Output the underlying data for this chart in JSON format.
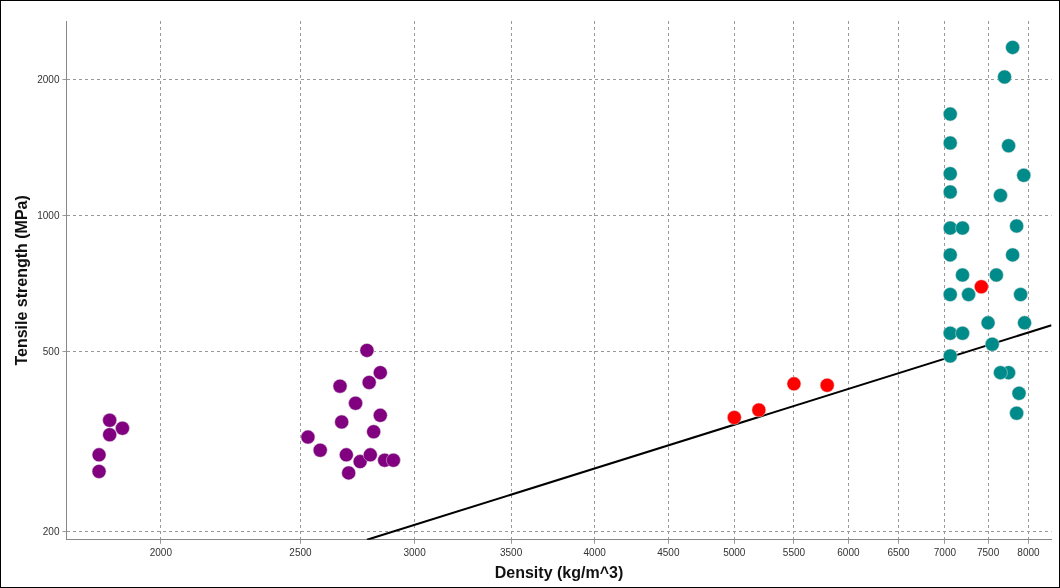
{
  "chart_data": {
    "type": "scatter",
    "xlabel": "Density (kg/m^3)",
    "ylabel": "Tensile strength (MPa)",
    "log": "xy",
    "grid": true,
    "legend": false,
    "marker": "circle",
    "xlim": [
      1720,
      8300
    ],
    "xticks": [
      2000,
      2500,
      3000,
      3500,
      4000,
      4500,
      5000,
      5500,
      6000,
      6500,
      7000,
      7500,
      8000
    ],
    "ylim": [
      192,
      2700
    ],
    "yticks": [
      200,
      500,
      1000,
      2000
    ],
    "series": [
      {
        "color": "#800080",
        "x": [
          1812,
          1812,
          1843,
          1843,
          1881,
          2530,
          2580,
          2663,
          2780,
          2670,
          2690,
          2730,
          2790,
          2810,
          2840,
          2700,
          2750,
          2795,
          2860,
          2840,
          2900
        ],
        "values": [
          272,
          296,
          353,
          328,
          339,
          324,
          303,
          420,
          504,
          350,
          296,
          385,
          428,
          333,
          450,
          270,
          286,
          296,
          288,
          362,
          288
        ]
      },
      {
        "color": "#ff0000",
        "x": [
          5000,
          5200,
          5500,
          5800,
          7420
        ],
        "values": [
          358,
          372,
          425,
          422,
          697
        ]
      },
      {
        "color": "#008b8b",
        "x": [
          7060,
          7060,
          7060,
          7060,
          7060,
          7060,
          7060,
          7060,
          7060,
          7200,
          7200,
          7200,
          7270,
          7800,
          7700,
          7750,
          7650,
          7850,
          7600,
          7900,
          7550,
          7750,
          7850,
          7880,
          7500,
          7950,
          7800,
          7940,
          7650
        ],
        "values": [
          1680,
          1450,
          1240,
          1130,
          940,
          820,
          670,
          550,
          490,
          940,
          740,
          550,
          670,
          2360,
          2030,
          1430,
          1110,
          950,
          740,
          670,
          520,
          450,
          366,
          405,
          580,
          580,
          820,
          1230,
          450
        ]
      },
      {
        "type": "line",
        "color": "#000000",
        "marker": "none",
        "x": [
          2780,
          8300
        ],
        "values": [
          192,
          573
        ]
      }
    ]
  }
}
